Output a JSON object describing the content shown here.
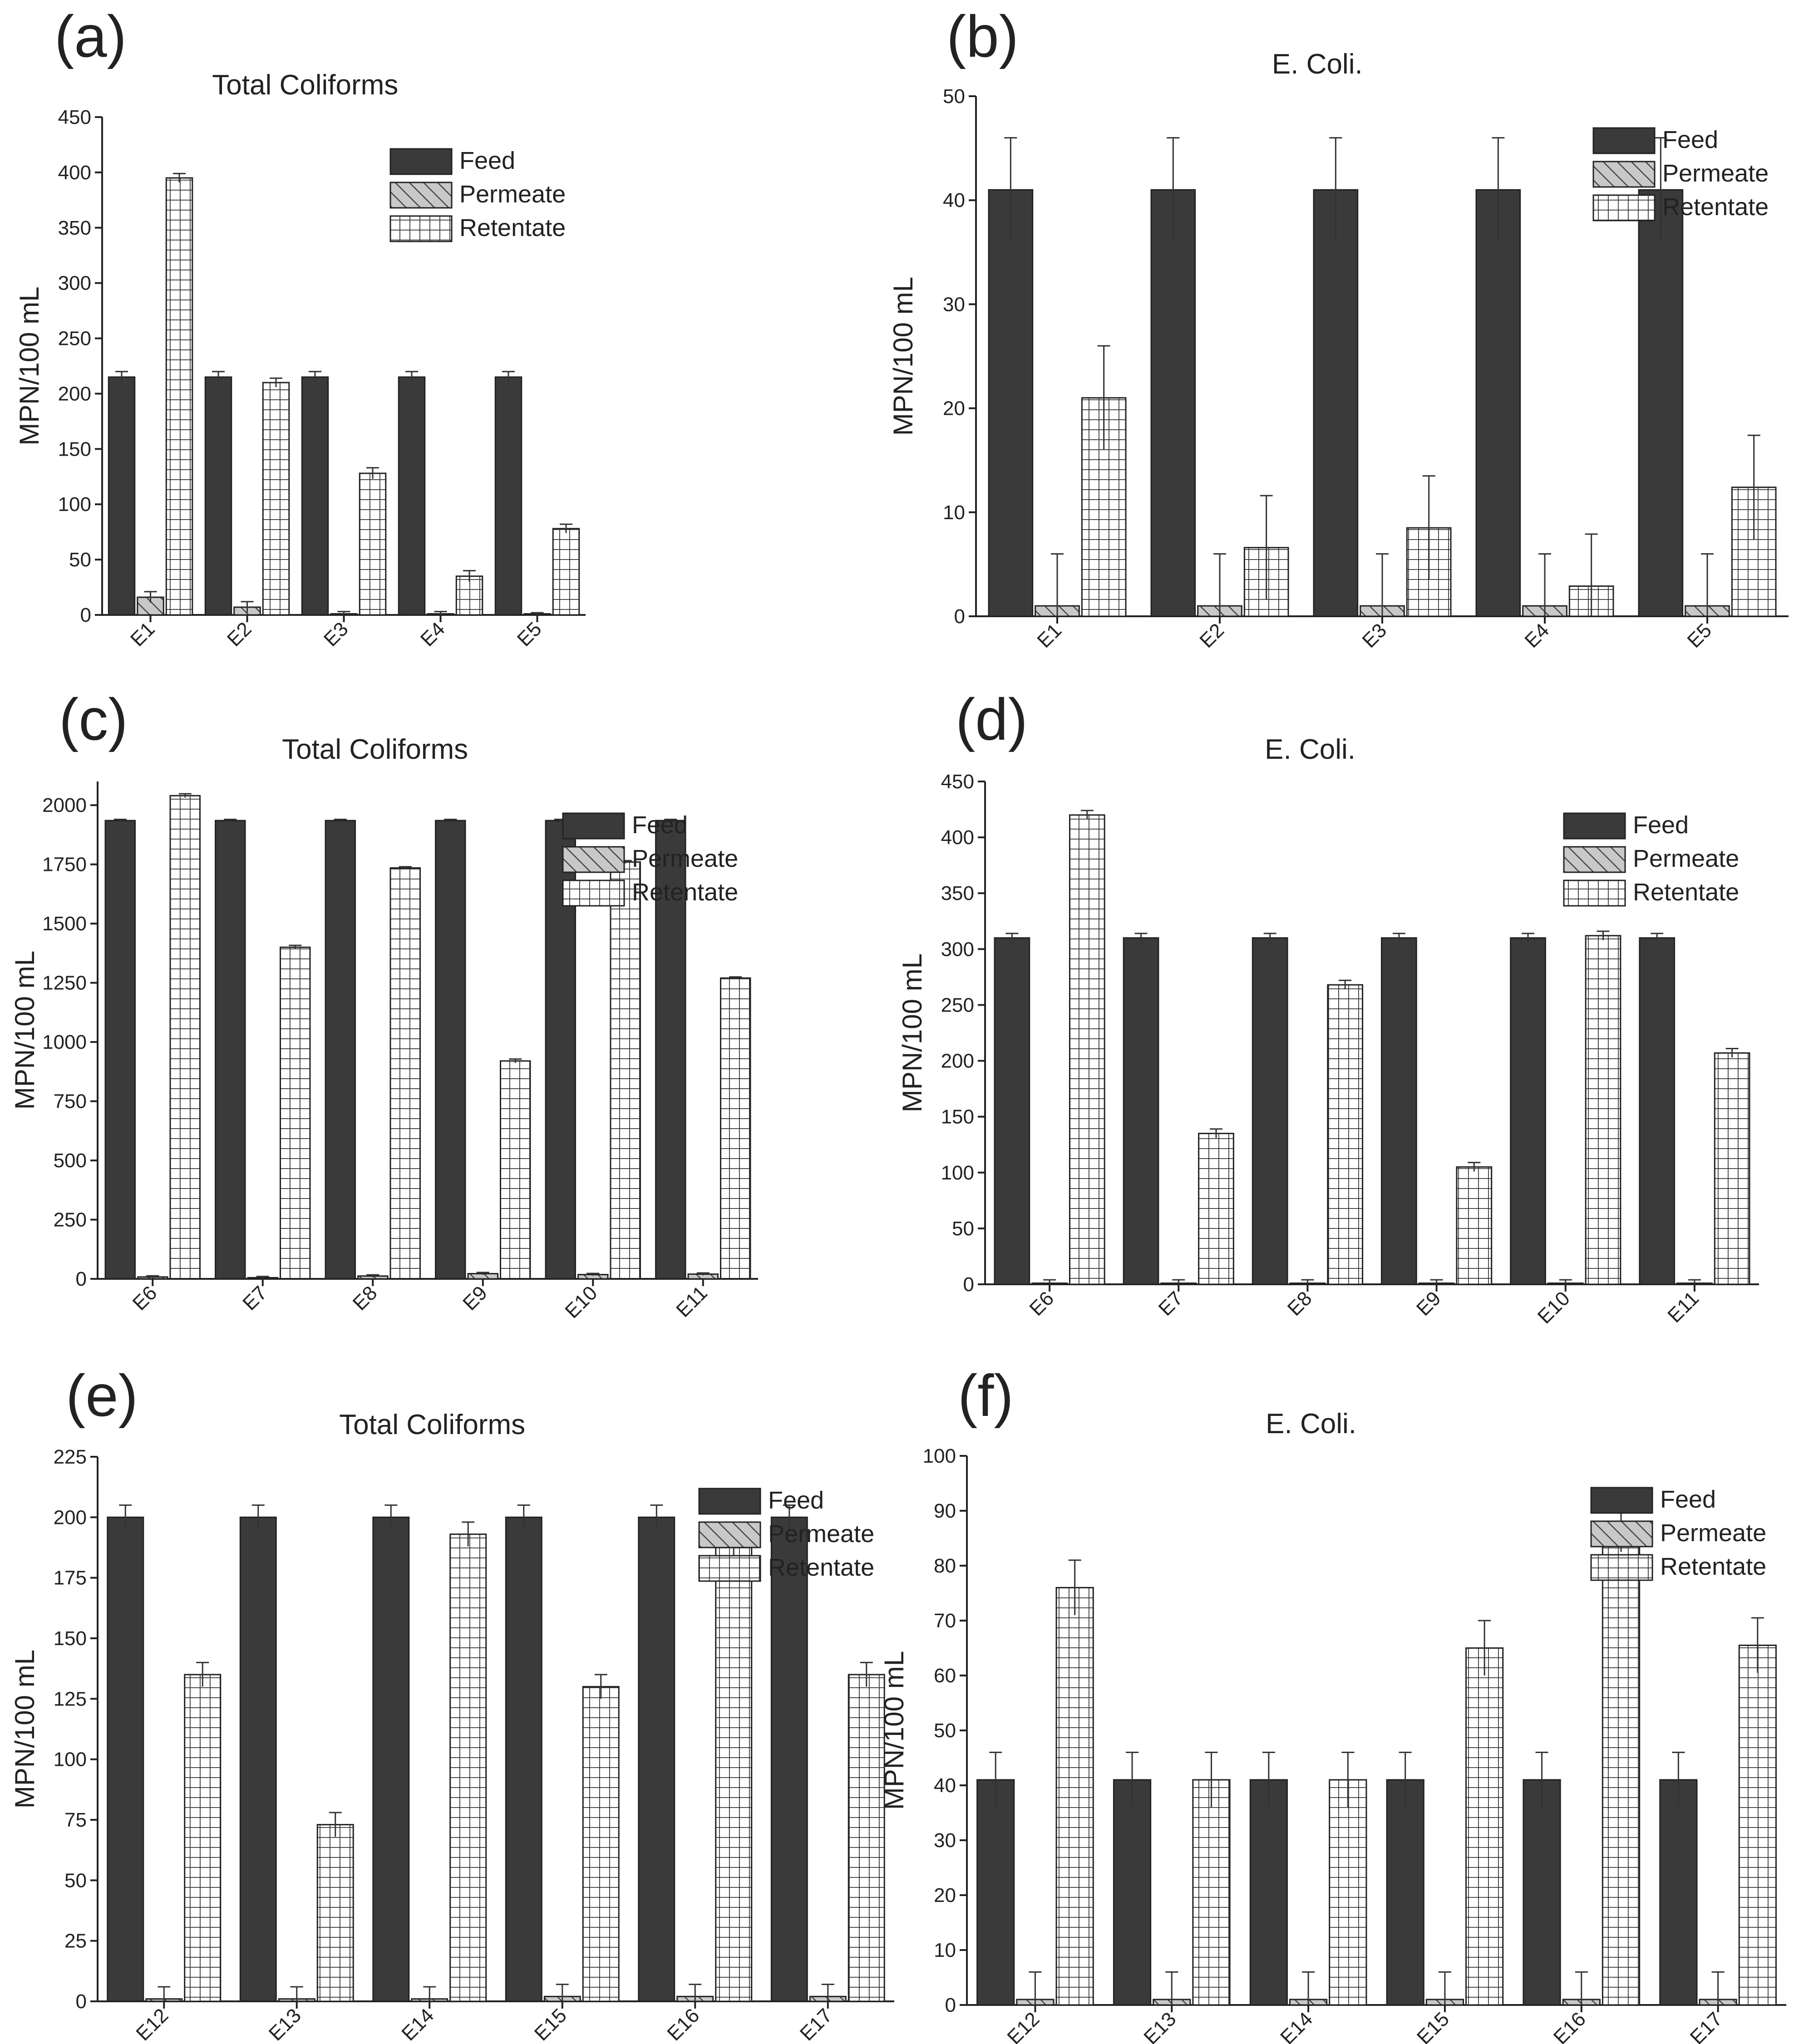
{
  "colors": {
    "feed": "#3a3a3a",
    "permeate": "#c8c8c8",
    "retentate": "#ffffff",
    "ink": "#222222"
  },
  "chart_data": [
    {
      "panel": "(a)",
      "type": "bar",
      "title": "Total Coliforms",
      "xlabel": "",
      "ylabel": "MPN/100 mL",
      "ylim": [
        0,
        450
      ],
      "yticks": [
        0,
        50,
        100,
        150,
        200,
        250,
        300,
        350,
        400,
        450
      ],
      "grid": false,
      "legend_position": "top-right",
      "categories": [
        "E1",
        "E2",
        "E3",
        "E4",
        "E5"
      ],
      "series": [
        {
          "name": "Feed",
          "pattern": "solid",
          "values": [
            215,
            215,
            215,
            215,
            215
          ],
          "errors": [
            5,
            5,
            5,
            5,
            5
          ]
        },
        {
          "name": "Permeate",
          "pattern": "diagonal",
          "values": [
            16,
            7,
            1,
            1,
            1
          ],
          "errors": [
            5,
            5,
            2,
            2,
            1
          ]
        },
        {
          "name": "Retentate",
          "pattern": "grid",
          "values": [
            395,
            210,
            128,
            35,
            78
          ],
          "errors": [
            4,
            4,
            5,
            5,
            4
          ]
        }
      ]
    },
    {
      "panel": "(b)",
      "type": "bar",
      "title": "E. Coli.",
      "xlabel": "",
      "ylabel": "MPN/100 mL",
      "ylim": [
        0,
        50
      ],
      "yticks": [
        0,
        10,
        20,
        30,
        40,
        50
      ],
      "grid": false,
      "legend_position": "top-right",
      "categories": [
        "E1",
        "E2",
        "E3",
        "E4",
        "E5"
      ],
      "series": [
        {
          "name": "Feed",
          "pattern": "solid",
          "values": [
            41,
            41,
            41,
            41,
            41
          ],
          "errors": [
            5,
            5,
            5,
            5,
            5
          ]
        },
        {
          "name": "Permeate",
          "pattern": "diagonal",
          "values": [
            1,
            1,
            1,
            1,
            1
          ],
          "errors": [
            5,
            5,
            5,
            5,
            5
          ]
        },
        {
          "name": "Retentate",
          "pattern": "grid",
          "values": [
            21,
            6.6,
            8.5,
            2.9,
            12.4
          ],
          "errors": [
            5,
            5,
            5,
            5,
            5
          ]
        }
      ]
    },
    {
      "panel": "(c)",
      "type": "bar",
      "title": "Total Coliforms",
      "xlabel": "",
      "ylabel": "MPN/100 mL",
      "ylim": [
        0,
        2100
      ],
      "yticks": [
        0,
        250,
        500,
        750,
        1000,
        1250,
        1500,
        1750,
        2000
      ],
      "grid": false,
      "legend_position": "top-right",
      "categories": [
        "E6",
        "E7",
        "E8",
        "E9",
        "E10",
        "E11"
      ],
      "series": [
        {
          "name": "Feed",
          "pattern": "solid",
          "values": [
            1935,
            1935,
            1935,
            1935,
            1935,
            1935
          ],
          "errors": [
            5,
            5,
            5,
            5,
            5,
            5
          ]
        },
        {
          "name": "Permeate",
          "pattern": "diagonal",
          "values": [
            8,
            5,
            12,
            22,
            18,
            20
          ],
          "errors": [
            5,
            5,
            5,
            5,
            5,
            5
          ]
        },
        {
          "name": "Retentate",
          "pattern": "grid",
          "values": [
            2040,
            1400,
            1735,
            920,
            1760,
            1270
          ],
          "errors": [
            8,
            8,
            5,
            8,
            6,
            5
          ]
        }
      ]
    },
    {
      "panel": "(d)",
      "type": "bar",
      "title": "E. Coli.",
      "xlabel": "",
      "ylabel": "MPN/100 mL",
      "ylim": [
        0,
        450
      ],
      "yticks": [
        0,
        50,
        100,
        150,
        200,
        250,
        300,
        350,
        400,
        450
      ],
      "grid": false,
      "legend_position": "top-right",
      "categories": [
        "E6",
        "E7",
        "E8",
        "E9",
        "E10",
        "E11"
      ],
      "series": [
        {
          "name": "Feed",
          "pattern": "solid",
          "values": [
            310,
            310,
            310,
            310,
            310,
            310
          ],
          "errors": [
            4,
            4,
            4,
            4,
            4,
            4
          ]
        },
        {
          "name": "Permeate",
          "pattern": "diagonal",
          "values": [
            1,
            1,
            1,
            1,
            1,
            1
          ],
          "errors": [
            3,
            3,
            3,
            3,
            3,
            3
          ]
        },
        {
          "name": "Retentate",
          "pattern": "grid",
          "values": [
            420,
            135,
            268,
            105,
            312,
            207
          ],
          "errors": [
            4,
            4,
            4,
            4,
            4,
            4
          ]
        }
      ]
    },
    {
      "panel": "(e)",
      "type": "bar",
      "title": "Total Coliforms",
      "xlabel": "",
      "ylabel": "MPN/100 mL",
      "ylim": [
        0,
        225
      ],
      "yticks": [
        0,
        25,
        50,
        75,
        100,
        125,
        150,
        175,
        200,
        225
      ],
      "grid": false,
      "legend_position": "top-right",
      "categories": [
        "E12",
        "E13",
        "E14",
        "E15",
        "E16",
        "E17"
      ],
      "series": [
        {
          "name": "Feed",
          "pattern": "solid",
          "values": [
            200,
            200,
            200,
            200,
            200,
            200
          ],
          "errors": [
            5,
            5,
            5,
            5,
            5,
            5
          ]
        },
        {
          "name": "Permeate",
          "pattern": "diagonal",
          "values": [
            1,
            1,
            1,
            2,
            2,
            2
          ],
          "errors": [
            5,
            5,
            5,
            5,
            5,
            5
          ]
        },
        {
          "name": "Retentate",
          "pattern": "grid",
          "values": [
            135,
            73,
            193,
            130,
            188,
            135
          ],
          "errors": [
            5,
            5,
            5,
            5,
            5,
            5
          ]
        }
      ]
    },
    {
      "panel": "(f)",
      "type": "bar",
      "title": "E. Coli.",
      "xlabel": "",
      "ylabel": "MPN/100 mL",
      "ylim": [
        0,
        100
      ],
      "yticks": [
        0,
        10,
        20,
        30,
        40,
        50,
        60,
        70,
        80,
        90,
        100
      ],
      "grid": false,
      "legend_position": "top-right",
      "categories": [
        "E12",
        "E13",
        "E14",
        "E15",
        "E16",
        "E17"
      ],
      "series": [
        {
          "name": "Feed",
          "pattern": "solid",
          "values": [
            41,
            41,
            41,
            41,
            41,
            41
          ],
          "errors": [
            5,
            5,
            5,
            5,
            5,
            5
          ]
        },
        {
          "name": "Permeate",
          "pattern": "diagonal",
          "values": [
            1,
            1,
            1,
            1,
            1,
            1
          ],
          "errors": [
            5,
            5,
            5,
            5,
            5,
            5
          ]
        },
        {
          "name": "Retentate",
          "pattern": "grid",
          "values": [
            76,
            41,
            41,
            65,
            87.5,
            65.5
          ],
          "errors": [
            5,
            5,
            5,
            5,
            5,
            5
          ]
        }
      ]
    }
  ]
}
